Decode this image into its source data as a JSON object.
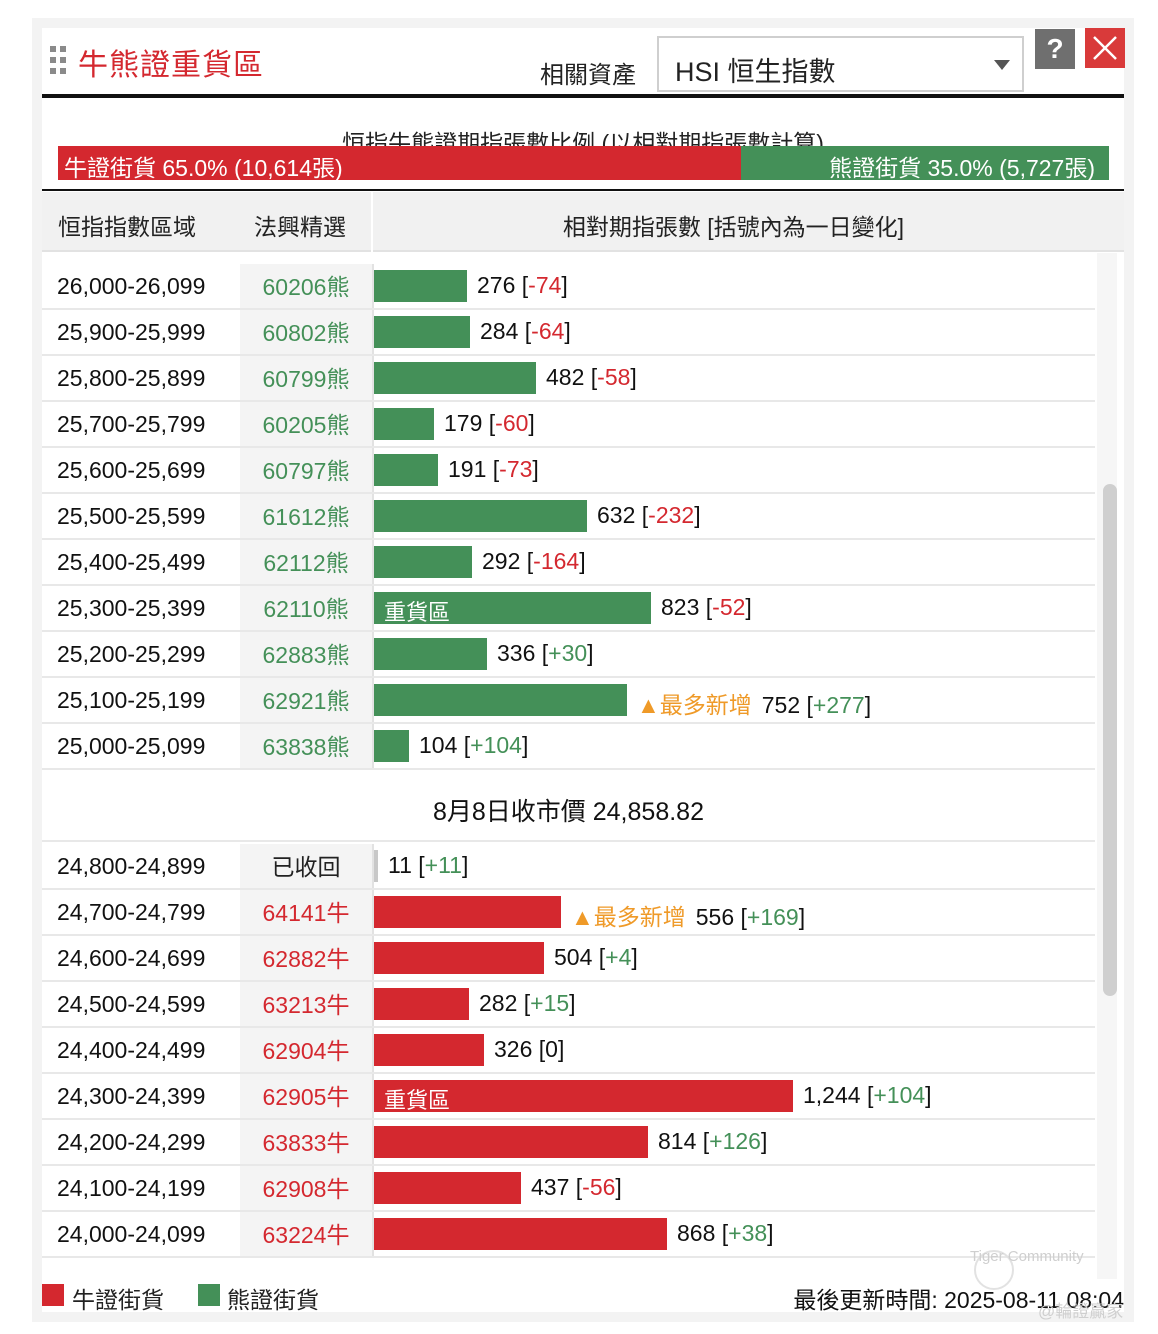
{
  "header": {
    "title": "牛熊證重貨區",
    "asset_label": "相關資產",
    "asset_value": "HSI 恒生指數",
    "help_label": "?"
  },
  "ratio": {
    "title": "恒指牛熊證期指張數比例 (以相對期指張數計算)",
    "bull_label": "牛證街貨 65.0% (10,614張)",
    "bear_label": "熊證街貨 35.0% (5,727張)",
    "bull_fraction": 0.65,
    "bull_color": "#d4282f",
    "bear_color": "#449058"
  },
  "columns": {
    "range": "恒指指數區域",
    "code": "法興精選",
    "contracts": "相對期指張數 [括號內為一日變化]"
  },
  "heavy_label": "重貨區",
  "most_label": "▲最多新增",
  "bear_rows": [
    {
      "range": "26,000-26,099",
      "code": "60206熊",
      "value": 276,
      "value_text": "276",
      "change": "-74",
      "sign": "neg",
      "heavy": false,
      "most": false
    },
    {
      "range": "25,900-25,999",
      "code": "60802熊",
      "value": 284,
      "value_text": "284",
      "change": "-64",
      "sign": "neg",
      "heavy": false,
      "most": false
    },
    {
      "range": "25,800-25,899",
      "code": "60799熊",
      "value": 482,
      "value_text": "482",
      "change": "-58",
      "sign": "neg",
      "heavy": false,
      "most": false
    },
    {
      "range": "25,700-25,799",
      "code": "60205熊",
      "value": 179,
      "value_text": "179",
      "change": "-60",
      "sign": "neg",
      "heavy": false,
      "most": false
    },
    {
      "range": "25,600-25,699",
      "code": "60797熊",
      "value": 191,
      "value_text": "191",
      "change": "-73",
      "sign": "neg",
      "heavy": false,
      "most": false
    },
    {
      "range": "25,500-25,599",
      "code": "61612熊",
      "value": 632,
      "value_text": "632",
      "change": "-232",
      "sign": "neg",
      "heavy": false,
      "most": false
    },
    {
      "range": "25,400-25,499",
      "code": "62112熊",
      "value": 292,
      "value_text": "292",
      "change": "-164",
      "sign": "neg",
      "heavy": false,
      "most": false
    },
    {
      "range": "25,300-25,399",
      "code": "62110熊",
      "value": 823,
      "value_text": "823",
      "change": "-52",
      "sign": "neg",
      "heavy": true,
      "most": false
    },
    {
      "range": "25,200-25,299",
      "code": "62883熊",
      "value": 336,
      "value_text": "336",
      "change": "+30",
      "sign": "pos",
      "heavy": false,
      "most": false
    },
    {
      "range": "25,100-25,199",
      "code": "62921熊",
      "value": 752,
      "value_text": "752",
      "change": "+277",
      "sign": "pos",
      "heavy": false,
      "most": true
    },
    {
      "range": "25,000-25,099",
      "code": "63838熊",
      "value": 104,
      "value_text": "104",
      "change": "+104",
      "sign": "pos",
      "heavy": false,
      "most": false
    }
  ],
  "close_label": "8月8日收市價 24,858.82",
  "bull_rows": [
    {
      "range": "24,800-24,899",
      "code": "已收回",
      "value": 11,
      "value_text": "11",
      "change": "+11",
      "sign": "pos",
      "heavy": false,
      "most": false,
      "recalled": true
    },
    {
      "range": "24,700-24,799",
      "code": "64141牛",
      "value": 556,
      "value_text": "556",
      "change": "+169",
      "sign": "pos",
      "heavy": false,
      "most": true
    },
    {
      "range": "24,600-24,699",
      "code": "62882牛",
      "value": 504,
      "value_text": "504",
      "change": "+4",
      "sign": "pos",
      "heavy": false,
      "most": false
    },
    {
      "range": "24,500-24,599",
      "code": "63213牛",
      "value": 282,
      "value_text": "282",
      "change": "+15",
      "sign": "pos",
      "heavy": false,
      "most": false
    },
    {
      "range": "24,400-24,499",
      "code": "62904牛",
      "value": 326,
      "value_text": "326",
      "change": "0",
      "sign": "zero",
      "heavy": false,
      "most": false
    },
    {
      "range": "24,300-24,399",
      "code": "62905牛",
      "value": 1244,
      "value_text": "1,244",
      "change": "+104",
      "sign": "pos",
      "heavy": true,
      "most": false
    },
    {
      "range": "24,200-24,299",
      "code": "63833牛",
      "value": 814,
      "value_text": "814",
      "change": "+126",
      "sign": "pos",
      "heavy": false,
      "most": false
    },
    {
      "range": "24,100-24,199",
      "code": "62908牛",
      "value": 437,
      "value_text": "437",
      "change": "-56",
      "sign": "neg",
      "heavy": false,
      "most": false
    },
    {
      "range": "24,000-24,099",
      "code": "63224牛",
      "value": 868,
      "value_text": "868",
      "change": "+38",
      "sign": "pos",
      "heavy": false,
      "most": false
    }
  ],
  "legend": {
    "bull": "牛證街貨",
    "bear": "熊證街貨"
  },
  "updated": "最後更新時間: 2025-08-11 08:04",
  "watermark": {
    "brand": "Tiger Community",
    "handle": "@輪證贏家"
  }
}
